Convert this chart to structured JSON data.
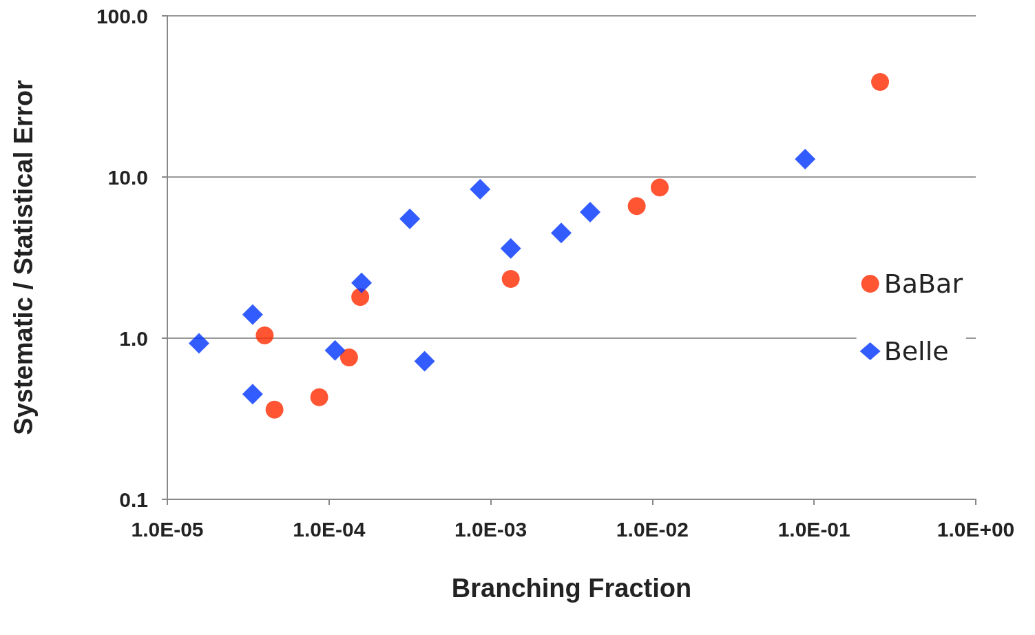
{
  "chart_data": {
    "type": "scatter",
    "xlabel": "Branching Fraction",
    "ylabel": "Systematic / Statistical Error",
    "log": "xy",
    "grid": "y",
    "legend": "right",
    "xlim": [
      1e-05,
      1
    ],
    "xticks": [
      {
        "value": 1e-05,
        "label": "1.0E-05"
      },
      {
        "value": 0.0001,
        "label": "1.0E-04"
      },
      {
        "value": 0.001,
        "label": "1.0E-03"
      },
      {
        "value": 0.01,
        "label": "1.0E-02"
      },
      {
        "value": 0.1,
        "label": "1.0E-01"
      },
      {
        "value": 1,
        "label": "1.0E+00"
      }
    ],
    "ylim": [
      0.1,
      100
    ],
    "yticks": [
      {
        "value": 0.1,
        "label": "0.1"
      },
      {
        "value": 1,
        "label": "1.0"
      },
      {
        "value": 10,
        "label": "10.0"
      },
      {
        "value": 100,
        "label": "100.0"
      }
    ],
    "series": [
      {
        "name": "BaBar",
        "color": "#ff2a00",
        "marker": "circle",
        "x": [
          4e-05,
          4.6e-05,
          8.7e-05,
          0.000133,
          0.000156,
          0.00133,
          0.008,
          0.0111,
          0.256
        ],
        "values": [
          1.04,
          0.36,
          0.43,
          0.76,
          1.8,
          2.33,
          6.6,
          8.6,
          38.9
        ]
      },
      {
        "name": "Belle",
        "color": "#0033ff",
        "marker": "diamond",
        "x": [
          1.57e-05,
          3.37e-05,
          3.37e-05,
          0.000109,
          0.000159,
          0.000316,
          0.00039,
          0.00086,
          0.00133,
          0.00273,
          0.00412,
          0.088
        ],
        "values": [
          0.93,
          1.4,
          0.45,
          0.84,
          2.2,
          5.5,
          0.72,
          8.4,
          3.6,
          4.5,
          6.05,
          12.9
        ]
      }
    ]
  }
}
